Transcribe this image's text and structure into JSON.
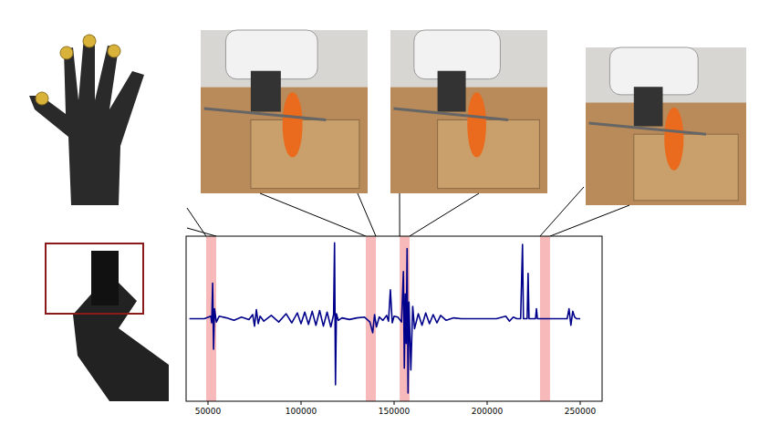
{
  "chart_data": {
    "type": "line",
    "color": "#00008b",
    "x": [
      40000,
      48000,
      51500,
      52000,
      52500,
      53000,
      53500,
      54500,
      56000,
      60000,
      64000,
      68000,
      72000,
      74000,
      75000,
      76000,
      77000,
      78000,
      80000,
      84000,
      88000,
      92000,
      95000,
      98000,
      100000,
      102000,
      104000,
      106000,
      108000,
      110000,
      112000,
      114000,
      116000,
      117500,
      118000,
      118500,
      119000,
      120000,
      122000,
      126000,
      130000,
      134000,
      137000,
      138500,
      139500,
      140500,
      142000,
      144000,
      146000,
      147000,
      148000,
      149000,
      150000,
      152000,
      154000,
      155000,
      155500,
      156000,
      156500,
      157000,
      157500,
      158000,
      159000,
      160000,
      161000,
      163000,
      165000,
      167000,
      169000,
      171000,
      173000,
      175000,
      178000,
      182000,
      186000,
      190000,
      195000,
      200000,
      205000,
      210000,
      212000,
      214000,
      216000,
      218000,
      219000,
      219500,
      220000,
      221500,
      222000,
      222500,
      224000,
      226000,
      226500,
      227000,
      230000,
      235000,
      240000,
      243000,
      244000,
      245000,
      246000,
      247000,
      248000,
      250000
    ],
    "values": [
      0,
      0,
      0.03,
      -0.05,
      0.43,
      -0.37,
      0.12,
      -0.04,
      0.03,
      0.01,
      -0.02,
      0.02,
      -0.01,
      0.05,
      -0.09,
      0.11,
      -0.06,
      0.03,
      -0.03,
      0.04,
      -0.04,
      0.06,
      -0.05,
      0.07,
      -0.06,
      0.08,
      -0.07,
      0.09,
      -0.08,
      0.1,
      -0.09,
      0.08,
      -0.1,
      0.05,
      0.92,
      -0.8,
      0.06,
      -0.02,
      0.01,
      -0.01,
      0.01,
      0.02,
      -0.04,
      -0.17,
      0.05,
      -0.1,
      0.02,
      -0.02,
      0.04,
      -0.03,
      0.35,
      -0.05,
      0.03,
      0.02,
      -0.04,
      0.57,
      -0.6,
      0.3,
      -0.3,
      0.85,
      -0.9,
      0.2,
      -0.62,
      0.15,
      -0.12,
      0.06,
      -0.08,
      0.07,
      -0.06,
      0.05,
      -0.05,
      0.04,
      -0.02,
      0.01,
      0,
      0,
      0,
      0,
      0,
      0.03,
      -0.03,
      0.02,
      0,
      0,
      0.9,
      0,
      0,
      0,
      0.55,
      0,
      0,
      0,
      0.12,
      0,
      0,
      0,
      0,
      0,
      0.12,
      -0.08,
      0.09,
      0.02,
      0,
      0
    ],
    "xlim": [
      38235,
      261765
    ],
    "xticks": [
      50000,
      100000,
      150000,
      200000,
      250000
    ],
    "ylim": [
      -1,
      1
    ],
    "tick_labels": "x",
    "highlights": [
      [
        49000,
        54400
      ],
      [
        134800,
        140200
      ],
      [
        153000,
        158300
      ],
      [
        228400,
        233800
      ]
    ]
  }
}
